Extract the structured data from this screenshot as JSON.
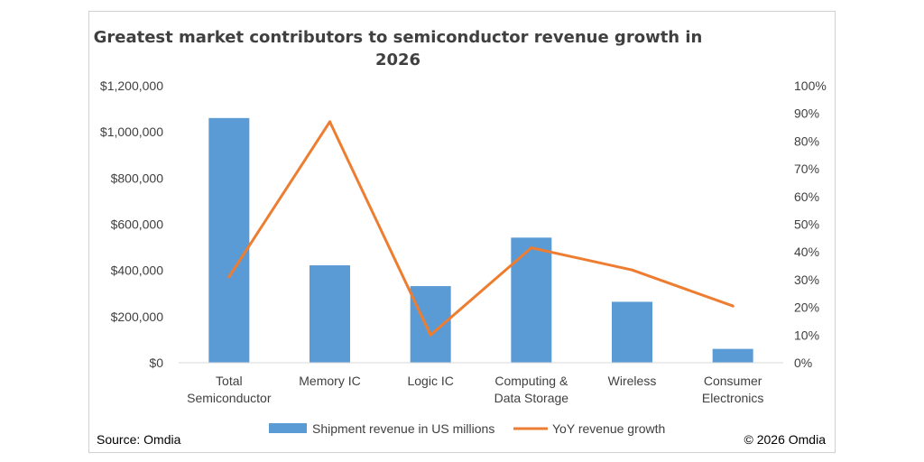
{
  "chart_data": {
    "type": "bar",
    "title_lines": [
      "Greatest market contributors to semiconductor revenue growth in",
      "2026"
    ],
    "categories": [
      [
        "Total",
        "Semiconductor"
      ],
      [
        "Memory IC"
      ],
      [
        "Logic IC"
      ],
      [
        "Computing &",
        "Data Storage"
      ],
      [
        "Wireless"
      ],
      [
        "Consumer",
        "Electronics"
      ]
    ],
    "series": [
      {
        "name": "Shipment revenue in US millions",
        "type": "bar",
        "axis": "left",
        "color": "#5B9BD5",
        "values": [
          1060000,
          422000,
          332000,
          542000,
          264000,
          60000
        ]
      },
      {
        "name": "YoY revenue growth",
        "type": "line",
        "axis": "right",
        "color": "#ED7D31",
        "values": [
          0.31,
          0.87,
          0.1,
          0.415,
          0.335,
          0.205
        ]
      }
    ],
    "left_axis": {
      "ylim": [
        0,
        1200000
      ],
      "ticks": [
        0,
        200000,
        400000,
        600000,
        800000,
        1000000,
        1200000
      ],
      "tick_labels": [
        "$0",
        "$200,000",
        "$400,000",
        "$600,000",
        "$800,000",
        "$1,000,000",
        "$1,200,000"
      ]
    },
    "right_axis": {
      "ylim": [
        0,
        1
      ],
      "ticks": [
        0,
        0.1,
        0.2,
        0.3,
        0.4,
        0.5,
        0.6,
        0.7,
        0.8,
        0.9,
        1.0
      ],
      "tick_labels": [
        "0%",
        "10%",
        "20%",
        "30%",
        "40%",
        "50%",
        "60%",
        "70%",
        "80%",
        "90%",
        "100%"
      ]
    },
    "grid": false,
    "legend_position": "bottom"
  },
  "footer": {
    "source": "Source: Omdia",
    "copyright": "© 2026 Omdia"
  }
}
